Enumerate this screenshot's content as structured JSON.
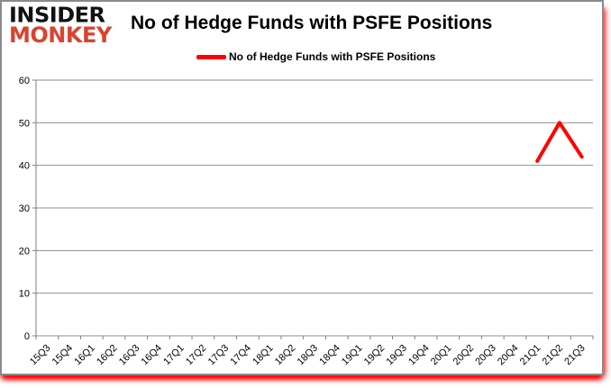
{
  "header": {
    "logo_line1": "INSIDER",
    "logo_line2": "MONKEY",
    "logo_color_primary": "#111111",
    "logo_color_accent": "#d9432f"
  },
  "chart_data": {
    "type": "line",
    "title": "No of Hedge Funds with PSFE Positions",
    "legend_position": "top",
    "grid": true,
    "grid_color": "#8e8e8e",
    "axis_color": "#7f7f7f",
    "tick_label_color": "#000000",
    "ylim": [
      0,
      60
    ],
    "yticks": [
      0,
      10,
      20,
      30,
      40,
      50,
      60
    ],
    "xlabel": "",
    "ylabel": "",
    "categories": [
      "15Q3",
      "15Q4",
      "16Q1",
      "16Q2",
      "16Q3",
      "16Q4",
      "17Q1",
      "17Q2",
      "17Q3",
      "17Q4",
      "18Q1",
      "18Q2",
      "18Q3",
      "18Q4",
      "19Q1",
      "19Q2",
      "19Q3",
      "19Q4",
      "20Q1",
      "20Q2",
      "20Q3",
      "20Q4",
      "21Q1",
      "21Q2",
      "21Q3"
    ],
    "series": [
      {
        "name": "No of Hedge Funds with PSFE Positions",
        "color": "#ff0000",
        "values": [
          null,
          null,
          null,
          null,
          null,
          null,
          null,
          null,
          null,
          null,
          null,
          null,
          null,
          null,
          null,
          null,
          null,
          null,
          null,
          null,
          null,
          null,
          41,
          50,
          42
        ]
      }
    ]
  }
}
